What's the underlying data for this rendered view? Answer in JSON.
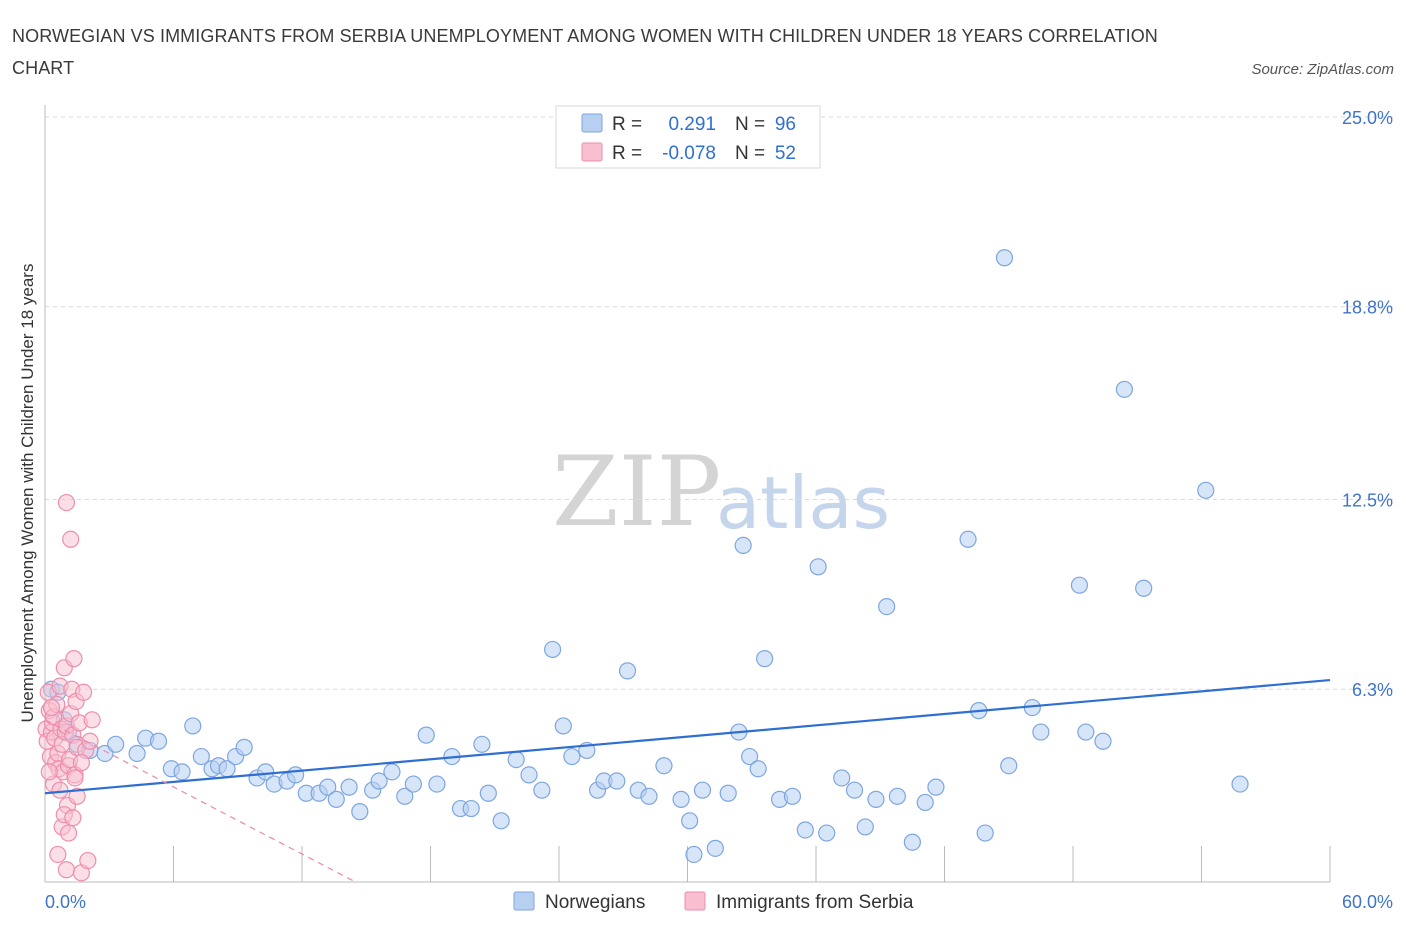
{
  "title": "NORWEGIAN VS IMMIGRANTS FROM SERBIA UNEMPLOYMENT AMONG WOMEN WITH CHILDREN UNDER 18 YEARS CORRELATION CHART",
  "source": "Source: ZipAtlas.com",
  "watermark": {
    "zip": "ZIP",
    "atlas": "atlas"
  },
  "legend_top": [
    {
      "r_label": "R =",
      "r_value": "0.291",
      "n_label": "N =",
      "n_value": "96"
    },
    {
      "r_label": "R =",
      "r_value": "-0.078",
      "n_label": "N =",
      "n_value": "52"
    }
  ],
  "colors": {
    "blue_fill": "#b7d0f2",
    "blue_stroke": "#7ea6de",
    "blue_line": "#2f6fd1",
    "pink_fill": "#f7bfd0",
    "pink_stroke": "#ee8eac",
    "pink_line": "#e88aa8",
    "grid": "#d9d9d9"
  },
  "chart_data": {
    "type": "scatter",
    "title": "NORWEGIAN VS IMMIGRANTS FROM SERBIA UNEMPLOYMENT AMONG WOMEN WITH CHILDREN UNDER 18 YEARS CORRELATION CHART",
    "xlabel": "",
    "ylabel": "Unemployment Among Women with Children Under 18 years",
    "xlim": [
      0,
      60
    ],
    "ylim": [
      0,
      25
    ],
    "x_tick_labels": [
      "0.0%",
      "60.0%"
    ],
    "y_ticks": [
      6.3,
      12.5,
      18.8,
      25.0
    ],
    "y_tick_labels": [
      "6.3%",
      "12.5%",
      "18.8%",
      "25.0%"
    ],
    "grid": true,
    "legend_position": "bottom-center",
    "series": [
      {
        "name": "Norwegians",
        "color": "#b7d0f2",
        "trend": {
          "x": [
            0,
            60
          ],
          "y": [
            2.9,
            6.6
          ]
        },
        "points": [
          [
            0.3,
            6.3
          ],
          [
            0.6,
            6.2
          ],
          [
            0.9,
            5.3
          ],
          [
            1.1,
            4.9
          ],
          [
            1.5,
            4.5
          ],
          [
            2.1,
            4.3
          ],
          [
            2.8,
            4.2
          ],
          [
            3.3,
            4.5
          ],
          [
            4.3,
            4.2
          ],
          [
            4.7,
            4.7
          ],
          [
            5.3,
            4.6
          ],
          [
            5.9,
            3.7
          ],
          [
            6.4,
            3.6
          ],
          [
            6.9,
            5.1
          ],
          [
            7.3,
            4.1
          ],
          [
            7.8,
            3.7
          ],
          [
            8.1,
            3.8
          ],
          [
            8.5,
            3.7
          ],
          [
            8.9,
            4.1
          ],
          [
            9.3,
            4.4
          ],
          [
            9.9,
            3.4
          ],
          [
            10.3,
            3.6
          ],
          [
            10.7,
            3.2
          ],
          [
            11.3,
            3.3
          ],
          [
            11.7,
            3.5
          ],
          [
            12.2,
            2.9
          ],
          [
            12.8,
            2.9
          ],
          [
            13.2,
            3.1
          ],
          [
            13.6,
            2.7
          ],
          [
            14.2,
            3.1
          ],
          [
            14.7,
            2.3
          ],
          [
            15.3,
            3.0
          ],
          [
            15.6,
            3.3
          ],
          [
            16.2,
            3.6
          ],
          [
            16.8,
            2.8
          ],
          [
            17.2,
            3.2
          ],
          [
            17.8,
            4.8
          ],
          [
            18.3,
            3.2
          ],
          [
            19.0,
            4.1
          ],
          [
            19.4,
            2.4
          ],
          [
            19.9,
            2.4
          ],
          [
            20.4,
            4.5
          ],
          [
            20.7,
            2.9
          ],
          [
            21.3,
            2.0
          ],
          [
            22.0,
            4.0
          ],
          [
            22.6,
            3.5
          ],
          [
            23.2,
            3.0
          ],
          [
            23.7,
            7.6
          ],
          [
            24.2,
            5.1
          ],
          [
            24.6,
            4.1
          ],
          [
            25.3,
            4.3
          ],
          [
            25.8,
            3.0
          ],
          [
            26.1,
            3.3
          ],
          [
            26.7,
            3.3
          ],
          [
            27.2,
            6.9
          ],
          [
            27.7,
            3.0
          ],
          [
            28.2,
            2.8
          ],
          [
            28.9,
            3.8
          ],
          [
            29.7,
            2.7
          ],
          [
            30.1,
            2.0
          ],
          [
            30.3,
            0.9
          ],
          [
            30.7,
            3.0
          ],
          [
            31.3,
            1.1
          ],
          [
            31.9,
            2.9
          ],
          [
            32.4,
            4.9
          ],
          [
            32.6,
            11.0
          ],
          [
            32.9,
            4.1
          ],
          [
            33.3,
            3.7
          ],
          [
            33.6,
            7.3
          ],
          [
            34.3,
            2.7
          ],
          [
            34.9,
            2.8
          ],
          [
            35.5,
            1.7
          ],
          [
            36.1,
            10.3
          ],
          [
            36.5,
            1.6
          ],
          [
            37.2,
            3.4
          ],
          [
            37.8,
            3.0
          ],
          [
            38.3,
            1.8
          ],
          [
            38.8,
            2.7
          ],
          [
            39.3,
            9.0
          ],
          [
            39.8,
            2.8
          ],
          [
            40.5,
            1.3
          ],
          [
            41.1,
            2.6
          ],
          [
            41.6,
            3.1
          ],
          [
            43.1,
            11.2
          ],
          [
            43.6,
            5.6
          ],
          [
            43.9,
            1.6
          ],
          [
            44.8,
            20.4
          ],
          [
            45.0,
            3.8
          ],
          [
            46.1,
            5.7
          ],
          [
            46.5,
            4.9
          ],
          [
            48.3,
            9.7
          ],
          [
            48.6,
            4.9
          ],
          [
            49.4,
            4.6
          ],
          [
            50.4,
            16.1
          ],
          [
            51.3,
            9.6
          ],
          [
            54.2,
            12.8
          ],
          [
            55.8,
            3.2
          ]
        ]
      },
      {
        "name": "Immigrants from Serbia",
        "color": "#f7bfd0",
        "trend": {
          "x": [
            0,
            14.5
          ],
          "y": [
            5.3,
            0.0
          ]
        },
        "points": [
          [
            0.05,
            5.0
          ],
          [
            0.1,
            4.6
          ],
          [
            0.15,
            6.2
          ],
          [
            0.2,
            5.6
          ],
          [
            0.25,
            4.1
          ],
          [
            0.3,
            4.9
          ],
          [
            0.35,
            5.2
          ],
          [
            0.4,
            5.4
          ],
          [
            0.45,
            4.7
          ],
          [
            0.5,
            3.9
          ],
          [
            0.55,
            5.8
          ],
          [
            0.6,
            4.2
          ],
          [
            0.65,
            3.7
          ],
          [
            0.7,
            6.4
          ],
          [
            0.75,
            5.0
          ],
          [
            0.8,
            4.5
          ],
          [
            0.85,
            3.6
          ],
          [
            0.9,
            7.0
          ],
          [
            0.95,
            4.9
          ],
          [
            1.0,
            5.1
          ],
          [
            1.05,
            2.5
          ],
          [
            1.1,
            3.8
          ],
          [
            1.15,
            4.0
          ],
          [
            1.2,
            5.5
          ],
          [
            1.25,
            6.3
          ],
          [
            1.3,
            4.8
          ],
          [
            1.35,
            7.3
          ],
          [
            1.4,
            3.5
          ],
          [
            1.45,
            5.9
          ],
          [
            1.5,
            4.4
          ],
          [
            1.0,
            12.4
          ],
          [
            1.2,
            11.2
          ],
          [
            0.8,
            1.8
          ],
          [
            0.9,
            2.2
          ],
          [
            1.1,
            1.6
          ],
          [
            1.3,
            2.1
          ],
          [
            1.5,
            2.8
          ],
          [
            0.6,
            0.9
          ],
          [
            1.0,
            0.4
          ],
          [
            1.7,
            0.3
          ],
          [
            2.0,
            0.7
          ],
          [
            1.6,
            5.2
          ],
          [
            1.8,
            6.2
          ],
          [
            2.2,
            5.3
          ],
          [
            0.4,
            3.2
          ],
          [
            0.7,
            3.0
          ],
          [
            1.9,
            4.3
          ],
          [
            2.1,
            4.6
          ],
          [
            0.3,
            5.7
          ],
          [
            1.4,
            3.4
          ],
          [
            0.2,
            3.6
          ],
          [
            1.7,
            3.9
          ]
        ]
      }
    ]
  },
  "bottom_legend": [
    {
      "label": "Norwegians"
    },
    {
      "label": "Immigrants from Serbia"
    }
  ]
}
